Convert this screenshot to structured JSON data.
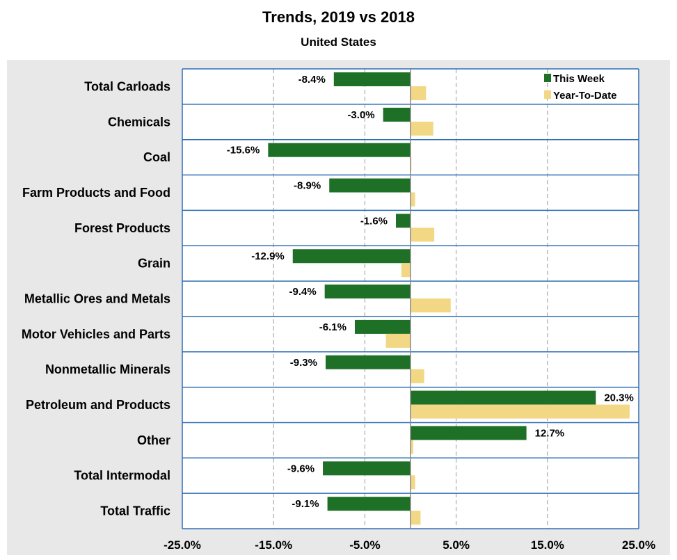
{
  "chart_data": {
    "type": "bar",
    "orientation": "horizontal",
    "title": "Trends, 2019 vs 2018",
    "subtitle": "United States",
    "categories": [
      "Total Carloads",
      "Chemicals",
      "Coal",
      "Farm Products and Food",
      "Forest Products",
      "Grain",
      "Metallic Ores and Metals",
      "Motor Vehicles and Parts",
      "Nonmetallic Minerals",
      "Petroleum and Products",
      "Other",
      "Total Intermodal",
      "Total Traffic"
    ],
    "series": [
      {
        "name": "This Week",
        "color": "#1e7026",
        "values": [
          -8.4,
          -3.0,
          -15.6,
          -8.9,
          -1.6,
          -12.9,
          -9.4,
          -6.1,
          -9.3,
          20.3,
          12.7,
          -9.6,
          -9.1
        ],
        "labels": [
          "-8.4%",
          "-3.0%",
          "-15.6%",
          "-8.9%",
          "-1.6%",
          "-12.9%",
          "-9.4%",
          "-6.1%",
          "-9.3%",
          "20.3%",
          "12.7%",
          "-9.6%",
          "-9.1%"
        ]
      },
      {
        "name": "Year-To-Date",
        "color": "#f2d785",
        "values": [
          1.7,
          2.5,
          0.1,
          0.5,
          2.6,
          -1.0,
          4.4,
          -2.7,
          1.5,
          24.0,
          0.3,
          0.5,
          1.1
        ]
      }
    ],
    "x_range": [
      -25,
      25
    ],
    "x_ticks": [
      -25,
      -15,
      -5,
      5,
      15,
      25
    ],
    "x_tick_labels": [
      "-25.0%",
      "-15.0%",
      "-5.0%",
      "5.0%",
      "15.0%",
      "25.0%"
    ],
    "legend_position": "top-right",
    "grid": true
  },
  "colors": {
    "background": "#e8e8e8",
    "plot_background": "#ffffff",
    "row_separator": "#2e6fb5",
    "gridline": "#9a9a9a"
  }
}
